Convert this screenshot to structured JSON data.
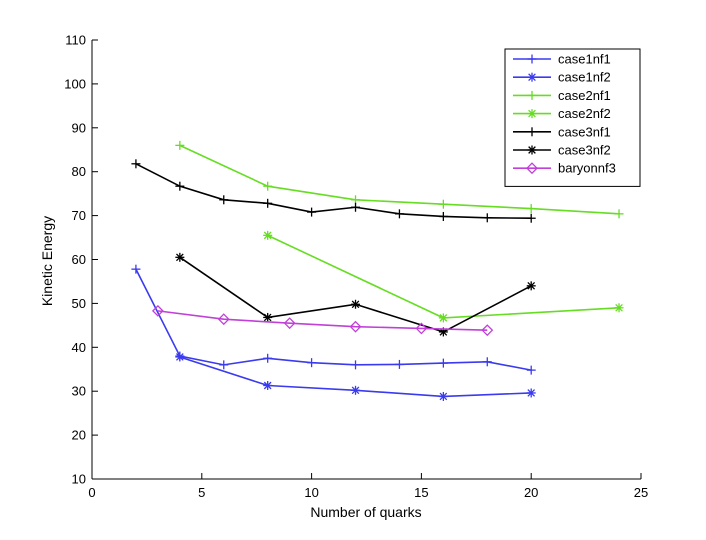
{
  "chart_data": {
    "type": "line",
    "title": "",
    "xlabel": "Number of quarks",
    "ylabel": "Kinetic Energy",
    "xlim": [
      0,
      25
    ],
    "ylim": [
      10,
      110
    ],
    "xticks": [
      0,
      5,
      10,
      15,
      20,
      25
    ],
    "yticks": [
      10,
      20,
      30,
      40,
      50,
      60,
      70,
      80,
      90,
      100,
      110
    ],
    "grid": false,
    "legend_position": "top-right",
    "series": [
      {
        "name": "case1nf1",
        "color": "#3a3af0",
        "marker": "plus",
        "x": [
          2,
          4,
          6,
          8,
          10,
          12,
          14,
          16,
          18,
          20
        ],
        "y": [
          57.8,
          38.0,
          36.0,
          37.5,
          36.5,
          36.0,
          36.1,
          36.4,
          36.7,
          34.8
        ]
      },
      {
        "name": "case1nf2",
        "color": "#3a3af0",
        "marker": "star",
        "x": [
          4,
          8,
          12,
          16,
          20
        ],
        "y": [
          37.8,
          31.3,
          30.2,
          28.8,
          29.6
        ]
      },
      {
        "name": "case2nf1",
        "color": "#66dd22",
        "marker": "plus",
        "x": [
          4,
          8,
          12,
          16,
          20,
          24
        ],
        "y": [
          86.0,
          76.7,
          73.6,
          72.6,
          71.6,
          70.4
        ]
      },
      {
        "name": "case2nf2",
        "color": "#66dd22",
        "marker": "star",
        "x": [
          8,
          16,
          24
        ],
        "y": [
          65.5,
          46.7,
          49.0
        ]
      },
      {
        "name": "case3nf1",
        "color": "#000000",
        "marker": "plus",
        "x": [
          2,
          4,
          6,
          8,
          10,
          12,
          14,
          16,
          18,
          20
        ],
        "y": [
          81.8,
          76.7,
          73.6,
          72.8,
          70.8,
          71.9,
          70.4,
          69.8,
          69.5,
          69.4
        ]
      },
      {
        "name": "case3nf2",
        "color": "#000000",
        "marker": "star",
        "x": [
          4,
          8,
          12,
          16,
          20
        ],
        "y": [
          60.5,
          46.8,
          49.8,
          43.5,
          54.0
        ]
      },
      {
        "name": "baryonnf3",
        "color": "#c040d8",
        "marker": "diamond",
        "x": [
          3,
          6,
          9,
          12,
          15,
          18
        ],
        "y": [
          48.3,
          46.4,
          45.5,
          44.7,
          44.3,
          43.9
        ]
      }
    ]
  }
}
